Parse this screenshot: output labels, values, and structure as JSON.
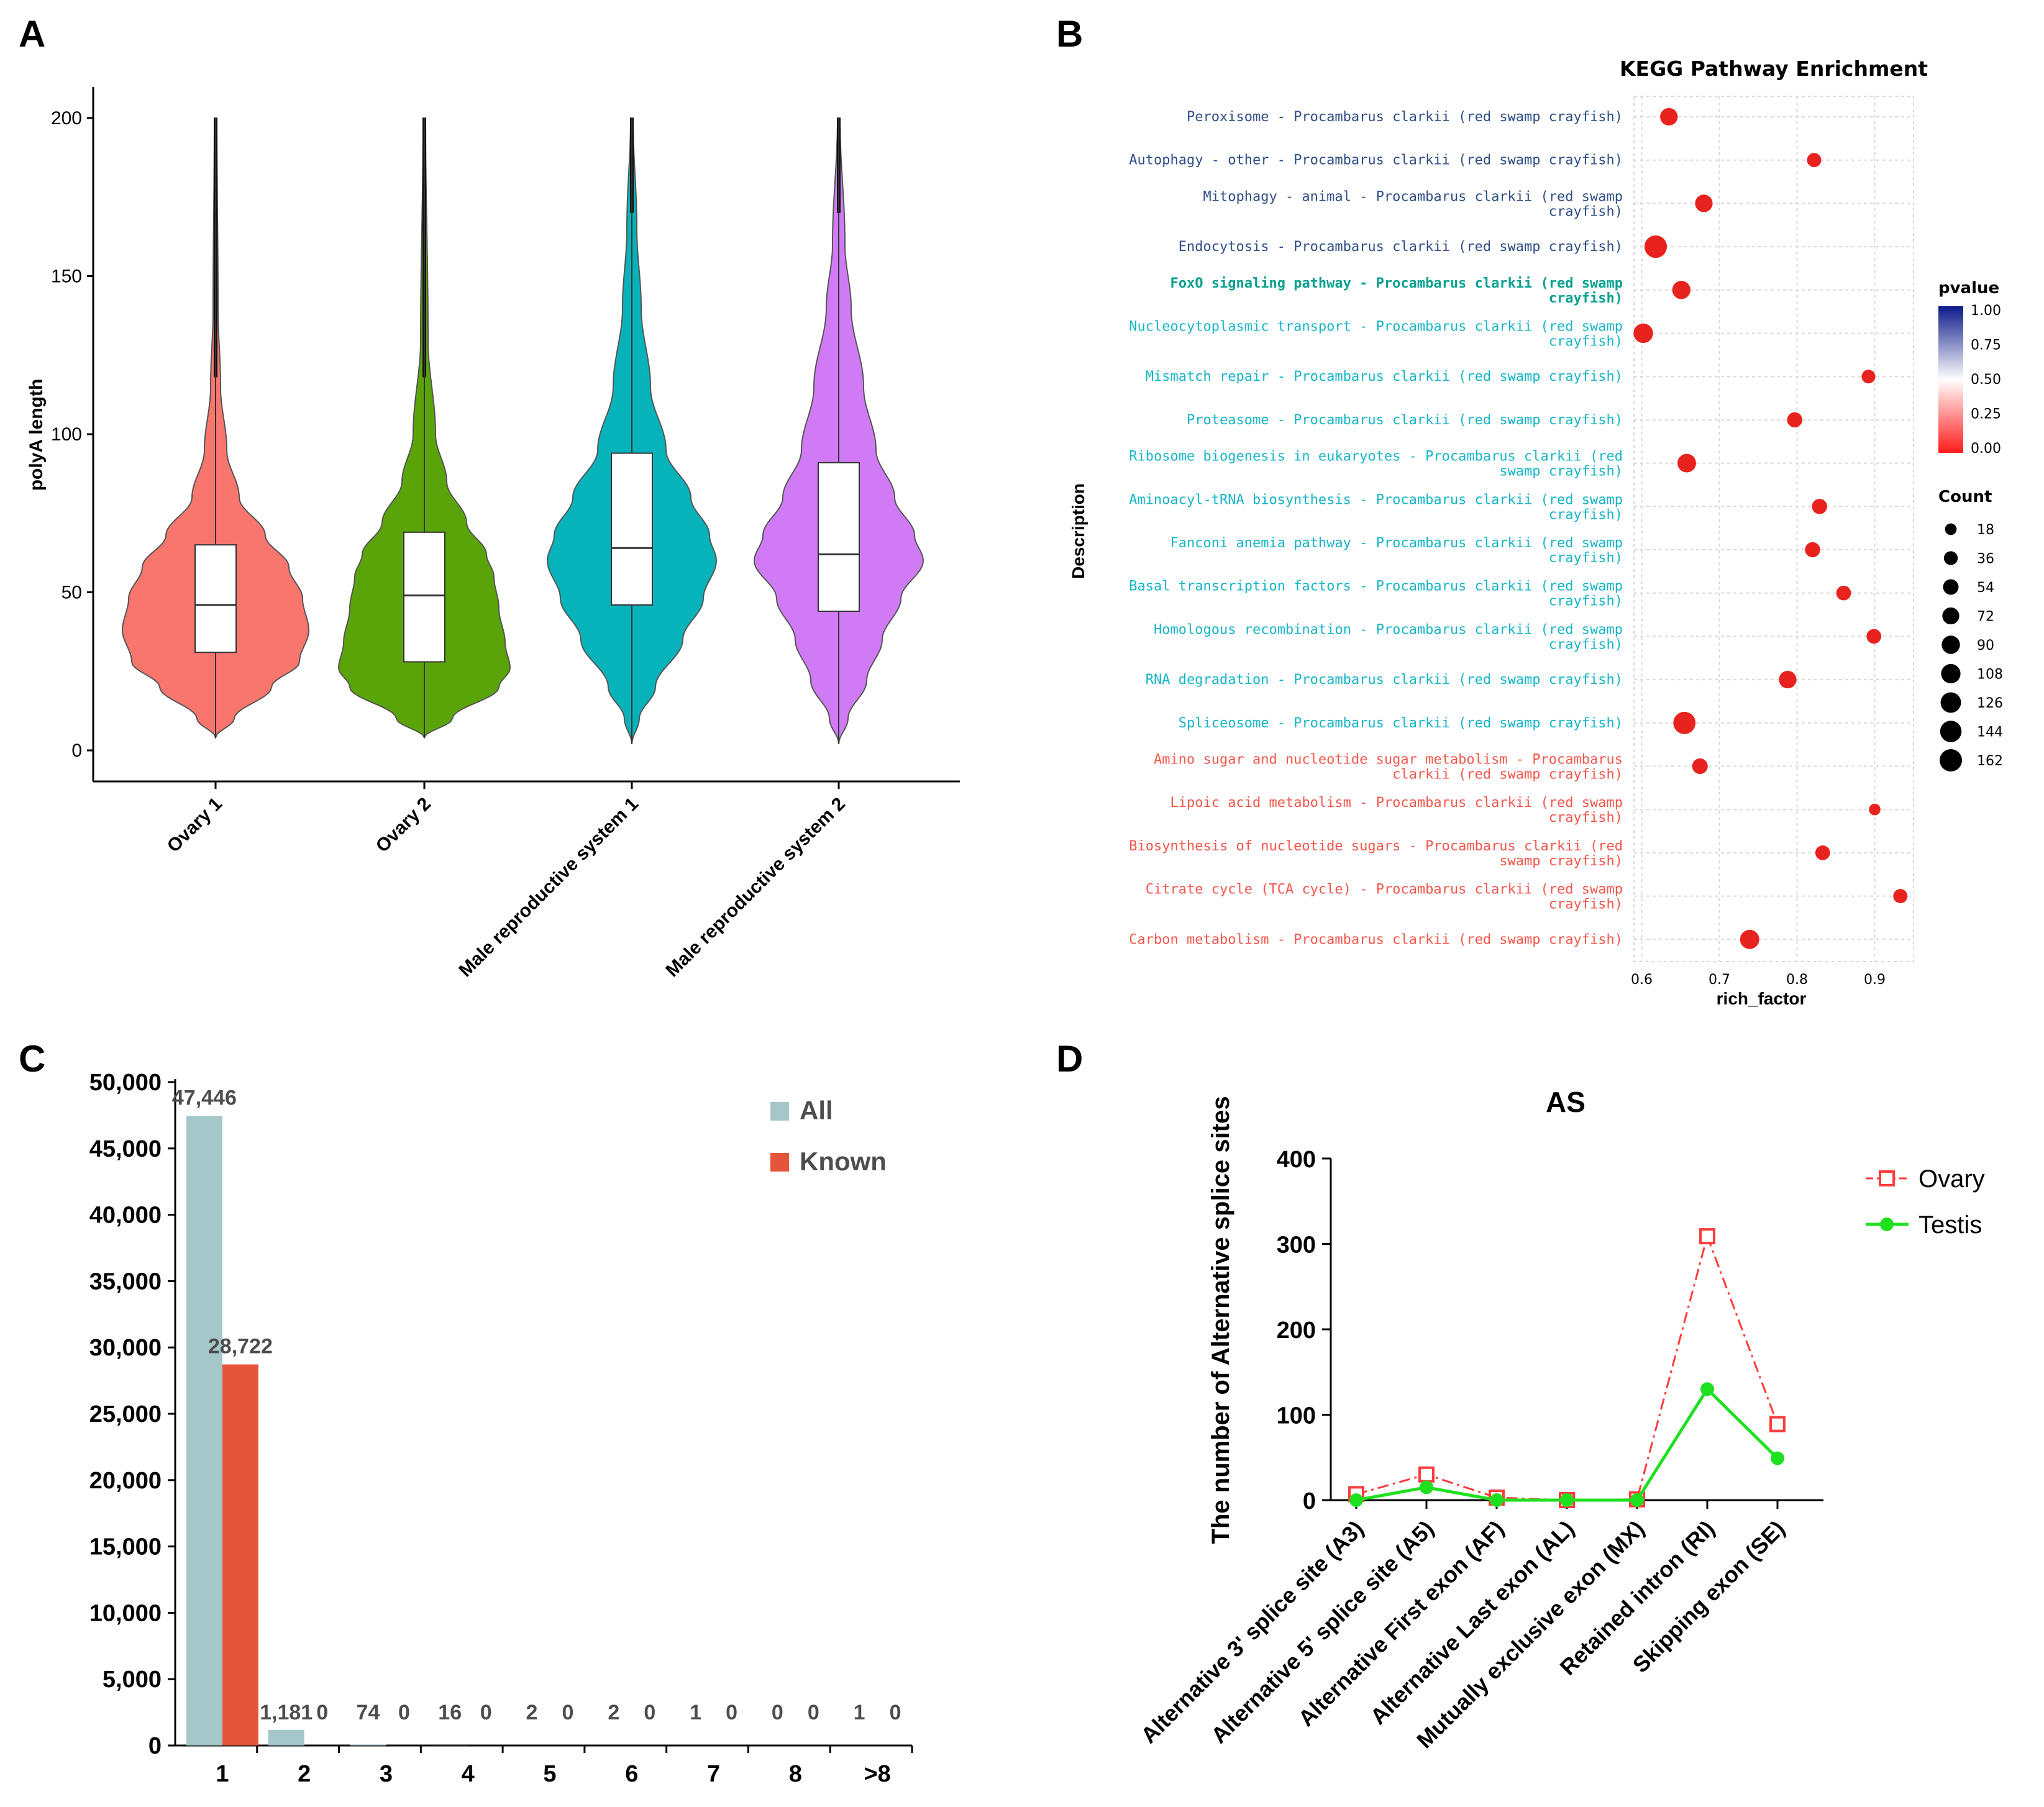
{
  "panels": {
    "A": "A",
    "B": "B",
    "C": "C",
    "D": "D"
  },
  "chart_data": [
    {
      "type": "violin",
      "panel": "A",
      "ylabel": "polyA length",
      "ylim": [
        0,
        200
      ],
      "yticks": [
        "0",
        "50",
        "100",
        "150",
        "200"
      ],
      "categories": [
        "Ovary 1",
        "Ovary 2",
        "Male reproductive system 1",
        "Male reproductive system 2"
      ],
      "colors": [
        "#f8766d",
        "#5aa409",
        "#06b3bb",
        "#d07bf5"
      ],
      "box": [
        {
          "q1": 31,
          "median": 46,
          "q3": 65
        },
        {
          "q1": 28,
          "median": 49,
          "q3": 69
        },
        {
          "q1": 46,
          "median": 64,
          "q3": 94
        },
        {
          "q1": 44,
          "median": 62,
          "q3": 91
        }
      ],
      "max": [
        200,
        200,
        200,
        200
      ],
      "min": [
        4,
        4,
        2,
        2
      ]
    },
    {
      "type": "scatter",
      "panel": "B",
      "title": "KEGG Pathway Enrichment",
      "xlabel": "rich_factor",
      "ylabel": "Description",
      "xlim": [
        0.59,
        0.95
      ],
      "xticks": [
        "0.6",
        "0.7",
        "0.8",
        "0.9"
      ],
      "legend_pvalue_title": "pvalue",
      "legend_pvalue_ticks": [
        "1.00",
        "0.75",
        "0.50",
        "0.25",
        "0.00"
      ],
      "legend_count_title": "Count",
      "legend_count_values": [
        "18",
        "36",
        "54",
        "72",
        "90",
        "108",
        "126",
        "144",
        "162"
      ],
      "pathways": [
        {
          "line1": "Peroxisome - Procambarus clarkii (red swamp crayfish)",
          "line2": "",
          "color": "#2e4e86",
          "rich": 0.635,
          "count": 80
        },
        {
          "line1": "Autophagy - other - Procambarus clarkii (red swamp crayfish)",
          "line2": "",
          "color": "#2e4e86",
          "rich": 0.822,
          "count": 40
        },
        {
          "line1": "Mitophagy - animal - Procambarus clarkii (red swamp",
          "line2": "crayfish)",
          "color": "#2e4e86",
          "rich": 0.68,
          "count": 80
        },
        {
          "line1": "Endocytosis - Procambarus clarkii (red swamp crayfish)",
          "line2": "",
          "color": "#2e4e86",
          "rich": 0.618,
          "count": 165
        },
        {
          "line1": "FoxO signaling pathway - Procambarus clarkii (red swamp",
          "line2": "crayfish)",
          "color": "#06a08f",
          "rich": 0.651,
          "count": 90,
          "bold": true
        },
        {
          "line1": "Nucleocytoplasmic transport - Procambarus clarkii (red swamp",
          "line2": "crayfish)",
          "color": "#14b5c8",
          "rich": 0.602,
          "count": 110
        },
        {
          "line1": "Mismatch repair - Procambarus clarkii (red swamp crayfish)",
          "line2": "",
          "color": "#14b5c8",
          "rich": 0.892,
          "count": 35
        },
        {
          "line1": "Proteasome - Procambarus clarkii (red swamp crayfish)",
          "line2": "",
          "color": "#14b5c8",
          "rich": 0.797,
          "count": 50
        },
        {
          "line1": "Ribosome biogenesis in eukaryotes - Procambarus clarkii (red",
          "line2": "swamp crayfish)",
          "color": "#14b5c8",
          "rich": 0.658,
          "count": 95
        },
        {
          "line1": "Aminoacyl-tRNA biosynthesis - Procambarus clarkii (red swamp",
          "line2": "crayfish)",
          "color": "#14b5c8",
          "rich": 0.829,
          "count": 50
        },
        {
          "line1": "Fanconi anemia pathway - Procambarus clarkii (red swamp",
          "line2": "crayfish)",
          "color": "#14b5c8",
          "rich": 0.82,
          "count": 50
        },
        {
          "line1": "Basal transcription factors - Procambarus clarkii (red swamp",
          "line2": "crayfish)",
          "color": "#14b5c8",
          "rich": 0.86,
          "count": 45
        },
        {
          "line1": "Homologous recombination - Procambarus clarkii (red swamp",
          "line2": "crayfish)",
          "color": "#14b5c8",
          "rich": 0.899,
          "count": 45
        },
        {
          "line1": "RNA degradation - Procambarus clarkii (red swamp crayfish)",
          "line2": "",
          "color": "#14b5c8",
          "rich": 0.788,
          "count": 80
        },
        {
          "line1": "Spliceosome - Procambarus clarkii (red swamp crayfish)",
          "line2": "",
          "color": "#14b5c8",
          "rich": 0.655,
          "count": 160
        },
        {
          "line1": "Amino sugar and nucleotide sugar metabolism - Procambarus",
          "line2": "clarkii (red swamp crayfish)",
          "color": "#f5554a",
          "rich": 0.675,
          "count": 55
        },
        {
          "line1": "Lipoic acid metabolism - Procambarus clarkii (red swamp",
          "line2": "crayfish)",
          "color": "#f5554a",
          "rich": 0.9,
          "count": 18
        },
        {
          "line1": "Biosynthesis of nucleotide sugars - Procambarus clarkii (red",
          "line2": "swamp crayfish)",
          "color": "#f5554a",
          "rich": 0.833,
          "count": 45
        },
        {
          "line1": "Citrate cycle (TCA cycle) - Procambarus clarkii (red swamp",
          "line2": "crayfish)",
          "color": "#f5554a",
          "rich": 0.933,
          "count": 40
        },
        {
          "line1": "Carbon metabolism - Procambarus clarkii (red swamp crayfish)",
          "line2": "",
          "color": "#f5554a",
          "rich": 0.739,
          "count": 105
        }
      ]
    },
    {
      "type": "bar",
      "panel": "C",
      "categories": [
        "1",
        "2",
        "3",
        "4",
        "5",
        "6",
        "7",
        "8",
        ">8"
      ],
      "series": [
        {
          "name": "All",
          "color": "#a6c7c9",
          "values": [
            47446,
            1181,
            74,
            16,
            2,
            2,
            1,
            0,
            1
          ],
          "labels": [
            "47,446",
            "1,181",
            "74",
            "16",
            "2",
            "2",
            "1",
            "0",
            "1"
          ]
        },
        {
          "name": "Known",
          "color": "#e5553c",
          "values": [
            28722,
            0,
            0,
            0,
            0,
            0,
            0,
            0,
            0
          ],
          "labels": [
            "28,722",
            "0",
            "0",
            "0",
            "0",
            "0",
            "0",
            "0",
            "0"
          ]
        }
      ],
      "ylim": [
        0,
        50000
      ],
      "yticks": [
        "0",
        "5,000",
        "10,000",
        "15,000",
        "20,000",
        "25,000",
        "30,000",
        "35,000",
        "40,000",
        "45,000",
        "50,000"
      ]
    },
    {
      "type": "line",
      "panel": "D",
      "title": "AS",
      "ylabel": "The number of Alternative splice sites",
      "ylim": [
        0,
        400
      ],
      "yticks": [
        "0",
        "100",
        "200",
        "300",
        "400"
      ],
      "categories": [
        "Alternative 3' splice site (A3)",
        "Alternative 5' splice site (A5)",
        "Alternative First exon (AF)",
        "Alternative Last exon (AL)",
        "Mutually exclusive exon (MX)",
        "Retained intron (RI)",
        "Skipping exon (SE)"
      ],
      "series": [
        {
          "name": "Ovary",
          "color": "#ff3b3b",
          "values": [
            7,
            30,
            3,
            0,
            1,
            309,
            89
          ]
        },
        {
          "name": "Testis",
          "color": "#1fe01f",
          "values": [
            0,
            15,
            0,
            0,
            0,
            130,
            49
          ]
        }
      ]
    }
  ]
}
